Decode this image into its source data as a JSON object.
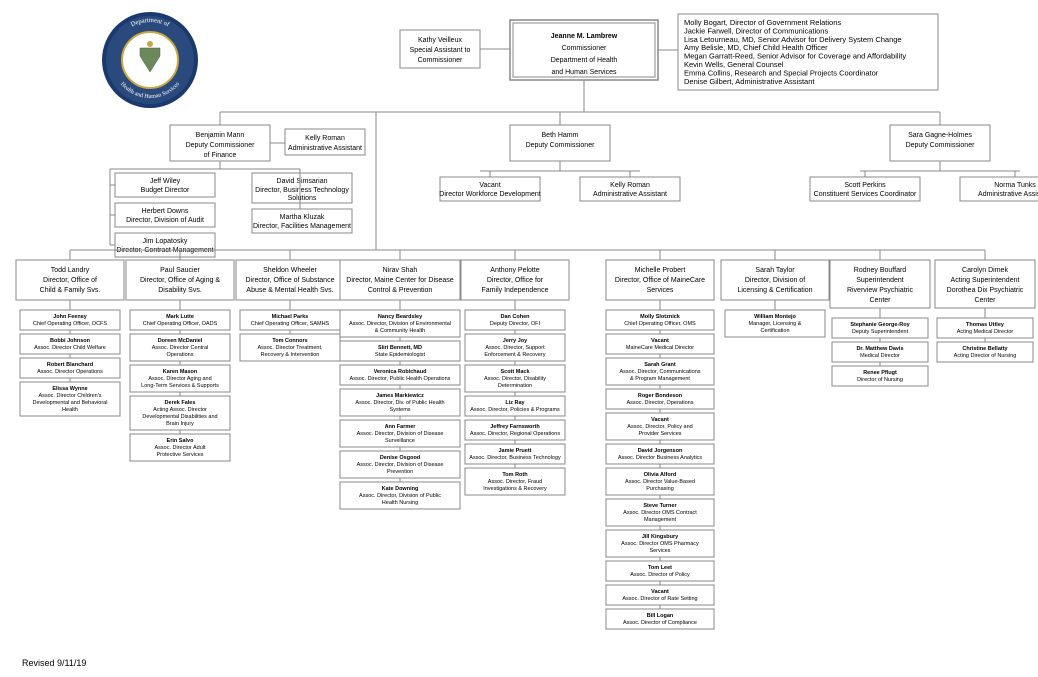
{
  "revised": "Revised 9/11/19",
  "seal": {
    "outer": "#1a3a6e",
    "outer2": "#2a4a7e",
    "inner": "#ffffff",
    "gold": "#c8a840",
    "text_top": "Department of",
    "text_bottom": "Health and Human Services"
  },
  "line_color": "#888888",
  "commissioner": {
    "name": "Jeanne M. Lambrew",
    "t1": "Commissioner",
    "t2": "Department of Health",
    "t3": "and Human Services"
  },
  "special_asst": {
    "name": "Kathy Veilleux",
    "t1": "Special Assistant to",
    "t2": "Commissioner"
  },
  "advisors": [
    "Molly Bogart, Director of Government Relations",
    "Jackie Farwell, Director of Communications",
    "Lisa Letourneau, MD, Senior Advisor for Delivery System Change",
    "Amy Belisle, MD, Chief Child Health Officer",
    "Megan Garratt-Reed, Senior Advisor for Coverage and Affordability",
    "Kevin Wells, General Counsel",
    "Emma Collins, Research and Special Projects Coordinator",
    "Denise Gilbert, Administrative Assistant"
  ],
  "dep1": {
    "name": "Benjamin Mann",
    "t1": "Deputy Commissioner",
    "t2": "of Finance"
  },
  "dep1_aa": {
    "name": "Kelly Roman",
    "t": "Administrative Assistant"
  },
  "dep1_l": [
    {
      "n": "Jeff Wiley",
      "t": "Budget Director"
    },
    {
      "n": "Herbert Downs",
      "t": "Director, Division of Audit"
    },
    {
      "n": "Jim Lopatosky",
      "t": "Director, Contract Management"
    }
  ],
  "dep1_r": [
    {
      "n": "David Simsarian",
      "t": "Director, Business Technology",
      "t2": "Solutions"
    },
    {
      "n": "Martha Kluzak",
      "t": "Director, Facilities Management"
    }
  ],
  "dep2": {
    "name": "Beth Hamm",
    "t": "Deputy Commissioner"
  },
  "dep2_l": {
    "n": "Vacant",
    "t": "Director Workforce Development"
  },
  "dep2_r": {
    "n": "Kelly Roman",
    "t": "Administrative Assistant"
  },
  "dep3": {
    "name": "Sara Gagne-Holmes",
    "t": "Deputy Commissioner"
  },
  "dep3_l": {
    "n": "Scott Perkins",
    "t": "Constituent Services Coordinator"
  },
  "dep3_r": {
    "n": "Norma Tunks",
    "t": "Administrative Assistant"
  },
  "cols": [
    {
      "head": {
        "n": "Todd Landry",
        "t1": "Director, Office of",
        "t2": "Child & Family Svs."
      },
      "subs": [
        {
          "n": "John Feeney",
          "t": "Chief Operating Officer, OCFS"
        },
        {
          "n": "Bobbi Johnson",
          "t": "Assoc. Director Child Welfare"
        },
        {
          "n": "Robert Blanchard",
          "t": "Assoc. Director Operations"
        },
        {
          "n": "Elissa Wynne",
          "t": "Assoc. Director Children's",
          "t2": "Developmental and Behavioral",
          "t3": "Health"
        }
      ]
    },
    {
      "head": {
        "n": "Paul Saucier",
        "t1": "Director, Office of Aging &",
        "t2": "Disability Svs."
      },
      "subs": [
        {
          "n": "Mark Lutte",
          "t": "Chief Operating Officer, OADS"
        },
        {
          "n": "Doreen McDaniel",
          "t": "Assoc. Director Central",
          "t2": "Operations"
        },
        {
          "n": "Karen Mason",
          "t": "Assoc. Director Aging and",
          "t2": "Long-Term Services & Supports"
        },
        {
          "n": "Derek Fales",
          "t": "Acting Assoc. Director",
          "t2": "Developmental Disabilities and",
          "t3": "Brain Injury"
        },
        {
          "n": "Erin Salvo",
          "t": "Assoc. Director Adult",
          "t2": "Protective Services"
        }
      ]
    },
    {
      "head": {
        "n": "Sheldon Wheeler",
        "t1": "Director, Office of Substance",
        "t2": "Abuse & Mental Health Svs."
      },
      "subs": [
        {
          "n": "Michael Parks",
          "t": "Chief Operating Officer, SAMHS"
        },
        {
          "n": "Tom Connors",
          "t": "Assoc. Director Treatment,",
          "t2": "Recovery & Intervention"
        }
      ]
    },
    {
      "head": {
        "n": "Nirav Shah",
        "t1": "Director, Maine Center for Disease",
        "t2": "Control & Prevention"
      },
      "subs": [
        {
          "n": "Nancy Beardsley",
          "t": "Assoc. Director, Division of Environmental",
          "t2": "& Community Health"
        },
        {
          "n": "Siiri Bennett, MD",
          "t": "State Epidemiologist"
        },
        {
          "n": "Veronica Robichaud",
          "t": "Assoc. Director, Public Health Operations"
        },
        {
          "n": "James Markiewicz",
          "t": "Assoc. Director, Div. of Public Health",
          "t2": "Systems"
        },
        {
          "n": "Ann Farmer",
          "t": "Assoc. Director, Division of Disease",
          "t2": "Surveillance"
        },
        {
          "n": "Denise Osgood",
          "t": "Assoc. Director, Division of Disease",
          "t2": "Prevention"
        },
        {
          "n": "Kate Downing",
          "t": "Assoc. Director, Division of Public",
          "t2": "Health Nursing"
        }
      ]
    },
    {
      "head": {
        "n": "Anthony Pelotte",
        "t1": "Director, Office for",
        "t2": "Family Independence"
      },
      "subs": [
        {
          "n": "Dan Cohen",
          "t": "Deputy Director, OFI"
        },
        {
          "n": "Jerry Joy",
          "t": "Assoc. Director, Support",
          "t2": "Enforcement & Recovery"
        },
        {
          "n": "Scott Mack",
          "t": "Assoc. Director, Disability",
          "t2": "Determination"
        },
        {
          "n": "Liz Ray",
          "t": "Assoc. Director, Policies & Programs"
        },
        {
          "n": "Jeffrey Farnsworth",
          "t": "Assoc. Director, Regional Operations"
        },
        {
          "n": "Jamie Pruett",
          "t": "Assoc. Director, Business Technology"
        },
        {
          "n": "Tom Roth",
          "t": "Assoc. Director, Fraud",
          "t2": "Investigations & Recovery"
        }
      ]
    },
    {
      "head": {
        "n": "Michelle Probert",
        "t1": "Director, Office of MaineCare",
        "t2": "Services"
      },
      "subs": [
        {
          "n": "Molly Slotznick",
          "t": "Chief Operating Officer, OMS"
        },
        {
          "n": "Vacant",
          "t": "MaineCare Medical Director"
        },
        {
          "n": "Sarah Grant",
          "t": "Assoc. Director, Communications",
          "t2": "& Program Management"
        },
        {
          "n": "Roger Bondeson",
          "t": "Assoc. Director, Operations"
        },
        {
          "n": "Vacant",
          "t": "Assoc. Director, Policy and",
          "t2": "Provider Services"
        },
        {
          "n": "David Jorgenson",
          "t": "Assoc. Director Business Analytics"
        },
        {
          "n": "Olivia Alford",
          "t": "Assoc. Director Value-Based",
          "t2": "Purchasing"
        },
        {
          "n": "Steve Turner",
          "t": "Assoc. Director OMS Contract",
          "t2": "Management"
        },
        {
          "n": "Jill Kingsbury",
          "t": "Assoc. Director OMS Pharmacy",
          "t2": "Services"
        },
        {
          "n": "Tom Leet",
          "t": "Assoc. Director of Policy"
        },
        {
          "n": "Vacant",
          "t": "Assoc. Director of Rate Setting"
        },
        {
          "n": "Bill Logan",
          "t": "Assoc. Director of Compliance"
        }
      ]
    },
    {
      "head": {
        "n": "Sarah Taylor",
        "t1": "Director, Division of",
        "t2": "Licensing & Certification"
      },
      "subs": [
        {
          "n": "William Montejo",
          "t": "Manager, Licensing &",
          "t2": "Certification"
        }
      ]
    },
    {
      "head": {
        "n": "Rodney Bouffard",
        "t1": "Superintendent",
        "t2": "Riverview Psychiatric",
        "t3": "Center"
      },
      "subs": [
        {
          "n": "Stephanie George-Roy",
          "t": "Deputy Superintendent"
        },
        {
          "n": "Dr. Matthew Davis",
          "t": "Medical Director"
        },
        {
          "n": "Renee Pflugt",
          "t": "Director of Nursing"
        }
      ]
    },
    {
      "head": {
        "n": "Carolyn Dimek",
        "t1": "Acting Superintendent",
        "t2": "Dorothea Dix Psychiatric",
        "t3": "Center"
      },
      "subs": [
        {
          "n": "Thomas Uttley",
          "t": "Acting Medical Director"
        },
        {
          "n": "Christine Bellatty",
          "t": "Acting Director of Nursing"
        }
      ]
    }
  ]
}
